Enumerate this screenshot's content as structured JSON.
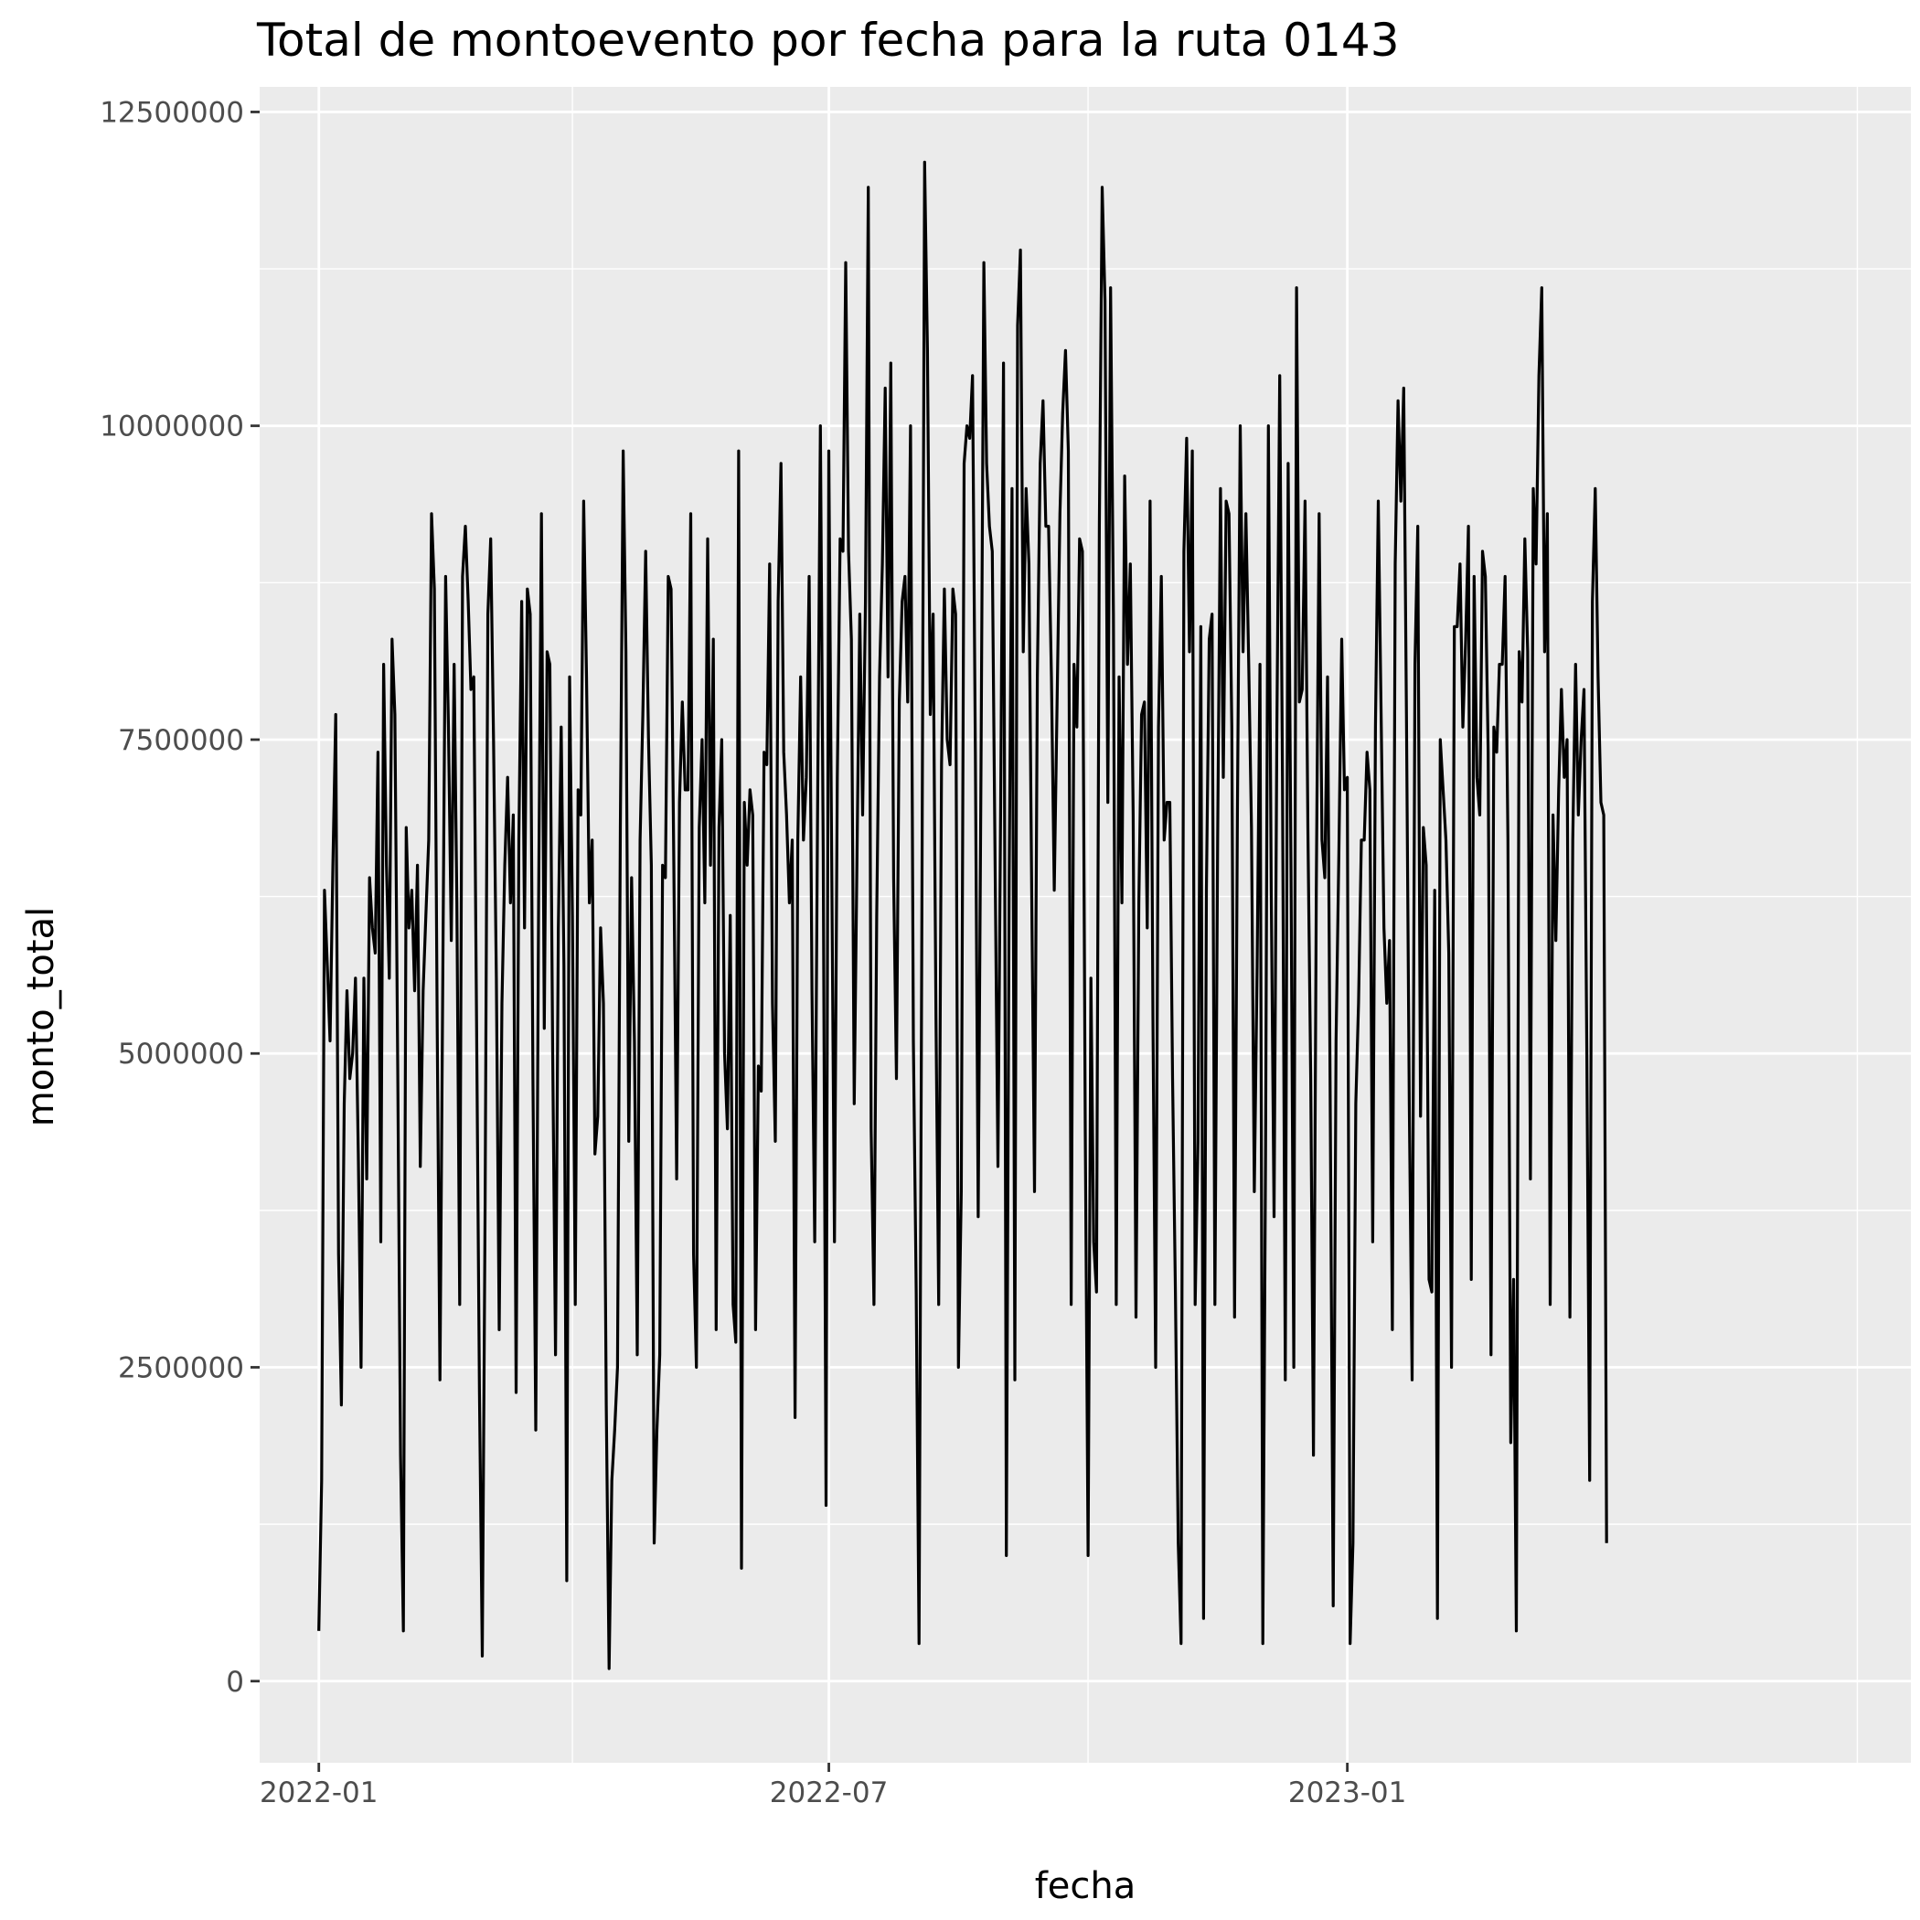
{
  "chart_data": {
    "type": "line",
    "title": "Total de montoevento por fecha para la ruta 0143",
    "xlabel": "fecha",
    "ylabel": "monto_total",
    "x_range": [
      "2021-12-11",
      "2023-07-20"
    ],
    "ylim": [
      -650000,
      12700000
    ],
    "x_ticks": [
      {
        "label": "2022-01",
        "date": "2022-01-01"
      },
      {
        "label": "2022-07",
        "date": "2022-07-01"
      },
      {
        "label": "2023-01",
        "date": "2023-01-01"
      }
    ],
    "x_minor_ticks": [
      "2022-04-01",
      "2022-10-01",
      "2023-07-01"
    ],
    "y_ticks": [
      {
        "label": "0",
        "value": 0
      },
      {
        "label": "2500000",
        "value": 2500000
      },
      {
        "label": "5000000",
        "value": 5000000
      },
      {
        "label": "7500000",
        "value": 7500000
      },
      {
        "label": "10000000",
        "value": 10000000
      },
      {
        "label": "12500000",
        "value": 12500000
      }
    ],
    "y_minor_ticks": [
      1250000,
      3750000,
      6250000,
      8750000,
      11250000
    ],
    "grid": true,
    "background": "#EBEBEB",
    "line_color": "#000000",
    "series": [
      {
        "start_date": "2022-01-01",
        "step_days": 1,
        "values": [
          400000,
          1600000,
          6300000,
          5700000,
          5100000,
          6500000,
          7700000,
          3400000,
          2200000,
          4600000,
          5500000,
          4800000,
          5000000,
          5600000,
          4200000,
          2500000,
          5600000,
          4000000,
          6400000,
          6000000,
          5800000,
          7400000,
          3500000,
          8100000,
          6500000,
          5600000,
          8300000,
          7700000,
          4900000,
          1800000,
          400000,
          6800000,
          6000000,
          6300000,
          5500000,
          6500000,
          4100000,
          5500000,
          6100000,
          6700000,
          9300000,
          8700000,
          5200000,
          2400000,
          5600000,
          8800000,
          7600000,
          5900000,
          8100000,
          6200000,
          3000000,
          8800000,
          9200000,
          8600000,
          7900000,
          8000000,
          5200000,
          2300000,
          200000,
          3800000,
          8500000,
          9100000,
          7500000,
          5600000,
          2800000,
          5400000,
          6500000,
          7200000,
          6200000,
          6900000,
          2300000,
          6700000,
          8600000,
          6000000,
          8700000,
          8500000,
          4800000,
          2000000,
          6200000,
          9300000,
          5200000,
          8200000,
          8100000,
          5000000,
          2600000,
          6000000,
          7600000,
          5700000,
          800000,
          8000000,
          6100000,
          3000000,
          7100000,
          6900000,
          9400000,
          8000000,
          6200000,
          6700000,
          4200000,
          4500000,
          6000000,
          5400000,
          2200000,
          100000,
          1600000,
          2000000,
          2500000,
          6800000,
          9800000,
          8200000,
          4300000,
          6400000,
          5100000,
          2600000,
          6700000,
          7700000,
          9000000,
          7500000,
          6500000,
          1100000,
          2000000,
          2600000,
          6500000,
          6400000,
          8800000,
          8700000,
          6500000,
          4000000,
          7000000,
          7800000,
          7100000,
          7100000,
          9300000,
          3400000,
          2500000,
          6800000,
          7500000,
          6200000,
          9100000,
          6500000,
          8300000,
          2800000,
          6800000,
          7500000,
          5000000,
          4400000,
          6100000,
          3000000,
          2700000,
          9800000,
          900000,
          7000000,
          6500000,
          7100000,
          6900000,
          2800000,
          4900000,
          4700000,
          7400000,
          7300000,
          8900000,
          5400000,
          4300000,
          8600000,
          9700000,
          7400000,
          6900000,
          6200000,
          6700000,
          2100000,
          6700000,
          8000000,
          6700000,
          7200000,
          8800000,
          5500000,
          3500000,
          6900000,
          10000000,
          6600000,
          1400000,
          9800000,
          6600000,
          3500000,
          7200000,
          9100000,
          9000000,
          11300000,
          9000000,
          8300000,
          4600000,
          6600000,
          8500000,
          6900000,
          8600000,
          11900000,
          4400000,
          3000000,
          6100000,
          8000000,
          8900000,
          10300000,
          8000000,
          10500000,
          6400000,
          4800000,
          7800000,
          8600000,
          8800000,
          7800000,
          10000000,
          5100000,
          3100000,
          300000,
          5900000,
          12100000,
          10600000,
          7700000,
          8500000,
          5300000,
          3000000,
          7300000,
          8700000,
          7500000,
          7300000,
          8700000,
          8500000,
          2500000,
          3900000,
          9700000,
          10000000,
          9900000,
          10400000,
          7400000,
          3700000,
          7300000,
          11300000,
          9700000,
          9200000,
          9000000,
          6500000,
          4100000,
          7000000,
          10500000,
          1000000,
          6400000,
          9500000,
          2400000,
          10800000,
          11400000,
          8200000,
          9500000,
          8900000,
          6300000,
          3900000,
          8000000,
          9700000,
          10200000,
          9200000,
          9200000,
          8000000,
          6300000,
          7800000,
          9300000,
          10100000,
          10600000,
          9800000,
          3000000,
          8100000,
          7600000,
          9100000,
          9000000,
          4400000,
          1000000,
          5600000,
          3500000,
          3100000,
          9200000,
          11900000,
          11000000,
          7000000,
          11100000,
          8500000,
          3000000,
          8000000,
          6200000,
          9600000,
          8100000,
          8900000,
          6900000,
          2900000,
          6200000,
          7700000,
          7800000,
          6000000,
          9400000,
          5300000,
          2500000,
          7600000,
          8800000,
          6700000,
          7000000,
          7000000,
          4800000,
          3100000,
          1100000,
          300000,
          9000000,
          9900000,
          8200000,
          9800000,
          3000000,
          4300000,
          8400000,
          500000,
          6300000,
          8300000,
          8500000,
          3000000,
          6700000,
          9500000,
          7200000,
          9400000,
          9300000,
          7600000,
          2900000,
          6900000,
          10000000,
          8200000,
          9300000,
          8100000,
          6800000,
          3900000,
          5700000,
          8100000,
          300000,
          4200000,
          10000000,
          6300000,
          3700000,
          7600000,
          10400000,
          7200000,
          2400000,
          9700000,
          6500000,
          2500000,
          11100000,
          7800000,
          7900000,
          9400000,
          6800000,
          4800000,
          1800000,
          6300000,
          9300000,
          6700000,
          6400000,
          8000000,
          4400000,
          600000,
          5100000,
          6600000,
          8300000,
          7100000,
          7200000,
          300000,
          1100000,
          4600000,
          5400000,
          6700000,
          6700000,
          7400000,
          7100000,
          3500000,
          7600000,
          9400000,
          7700000,
          6000000,
          5400000,
          5900000,
          2800000,
          8900000,
          10200000,
          9400000,
          10300000,
          7700000,
          4600000,
          2400000,
          8100000,
          9200000,
          4500000,
          6800000,
          6500000,
          3200000,
          3100000,
          6300000,
          500000,
          7500000,
          7100000,
          6700000,
          5800000,
          2500000,
          8400000,
          8400000,
          8900000,
          7600000,
          8300000,
          9200000,
          3200000,
          8800000,
          7200000,
          6900000,
          9000000,
          8800000,
          7400000,
          2600000,
          7600000,
          7400000,
          8100000,
          8100000,
          8800000,
          6700000,
          1900000,
          3200000,
          400000,
          8200000,
          7800000,
          9100000,
          8200000,
          4000000,
          9500000,
          8900000,
          10400000,
          11100000,
          8200000,
          9300000,
          3000000,
          6900000,
          5900000,
          7100000,
          7900000,
          7200000,
          7500000,
          2900000,
          6700000,
          8100000,
          6900000,
          7500000,
          7900000,
          5000000,
          1600000,
          8600000,
          9500000,
          8000000,
          7000000,
          6900000,
          1100000
        ]
      }
    ]
  }
}
